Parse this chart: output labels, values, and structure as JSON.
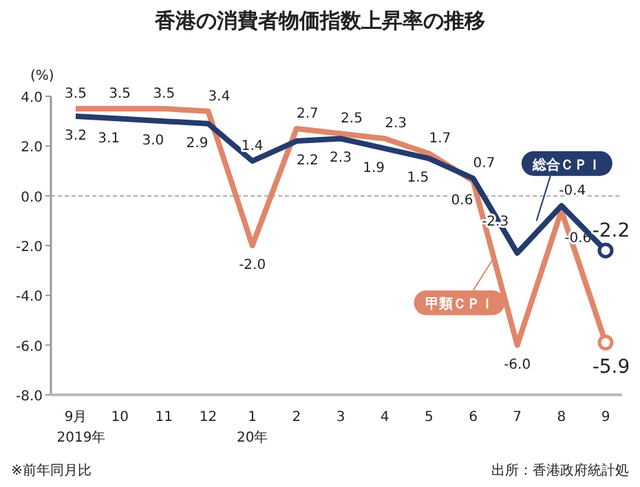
{
  "chart_data": {
    "type": "line",
    "title": "香港の消費者物価指数上昇率の推移",
    "ylabel": "(%)",
    "categories": [
      "9月\n2019年",
      "10",
      "11",
      "12",
      "1\n20年",
      "2",
      "3",
      "4",
      "5",
      "6",
      "7",
      "8",
      "9"
    ],
    "series": [
      {
        "name": "甲類ＣＰＩ",
        "color": "#e0866a",
        "values": [
          3.5,
          3.5,
          3.5,
          3.4,
          -2.0,
          2.7,
          2.5,
          2.3,
          1.7,
          0.6,
          -6.0,
          -0.6,
          -5.9
        ],
        "value_labels": [
          "3.5",
          "3.5",
          "3.5",
          "3.4",
          "-2.0",
          "2.7",
          "2.5",
          "2.3",
          "1.7",
          "0.6",
          "-6.0",
          "-0.6",
          "-5.9"
        ]
      },
      {
        "name": "総合ＣＰＩ",
        "color": "#253b6e",
        "values": [
          3.2,
          3.1,
          3.0,
          2.9,
          1.4,
          2.2,
          2.3,
          1.9,
          1.5,
          0.7,
          -2.3,
          -0.4,
          -2.2
        ],
        "value_labels": [
          "3.2",
          "3.1",
          "3.0",
          "2.9",
          "1.4",
          "2.2",
          "2.3",
          "1.9",
          "1.5",
          "0.7",
          "-2.3",
          "-0.4",
          "-2.2"
        ]
      }
    ],
    "ylim": [
      -8,
      4
    ],
    "yticks": [
      {
        "value": 4,
        "label": "4.0"
      },
      {
        "value": 2,
        "label": "2.0"
      },
      {
        "value": 0,
        "label": "0.0"
      },
      {
        "value": -2,
        "label": "-2.0"
      },
      {
        "value": -4,
        "label": "-4.0"
      },
      {
        "value": -6,
        "label": "-6.0"
      },
      {
        "value": -8,
        "label": "-8.0"
      }
    ],
    "ref_lines": [
      {
        "axis": "y",
        "value": 0,
        "color": "#aaaaaa",
        "line_style": "dashed"
      }
    ],
    "grid": false,
    "legend": false,
    "line_style": "solid",
    "annotations": [
      "※前年同月比",
      "出所：香港政府統計処"
    ]
  }
}
